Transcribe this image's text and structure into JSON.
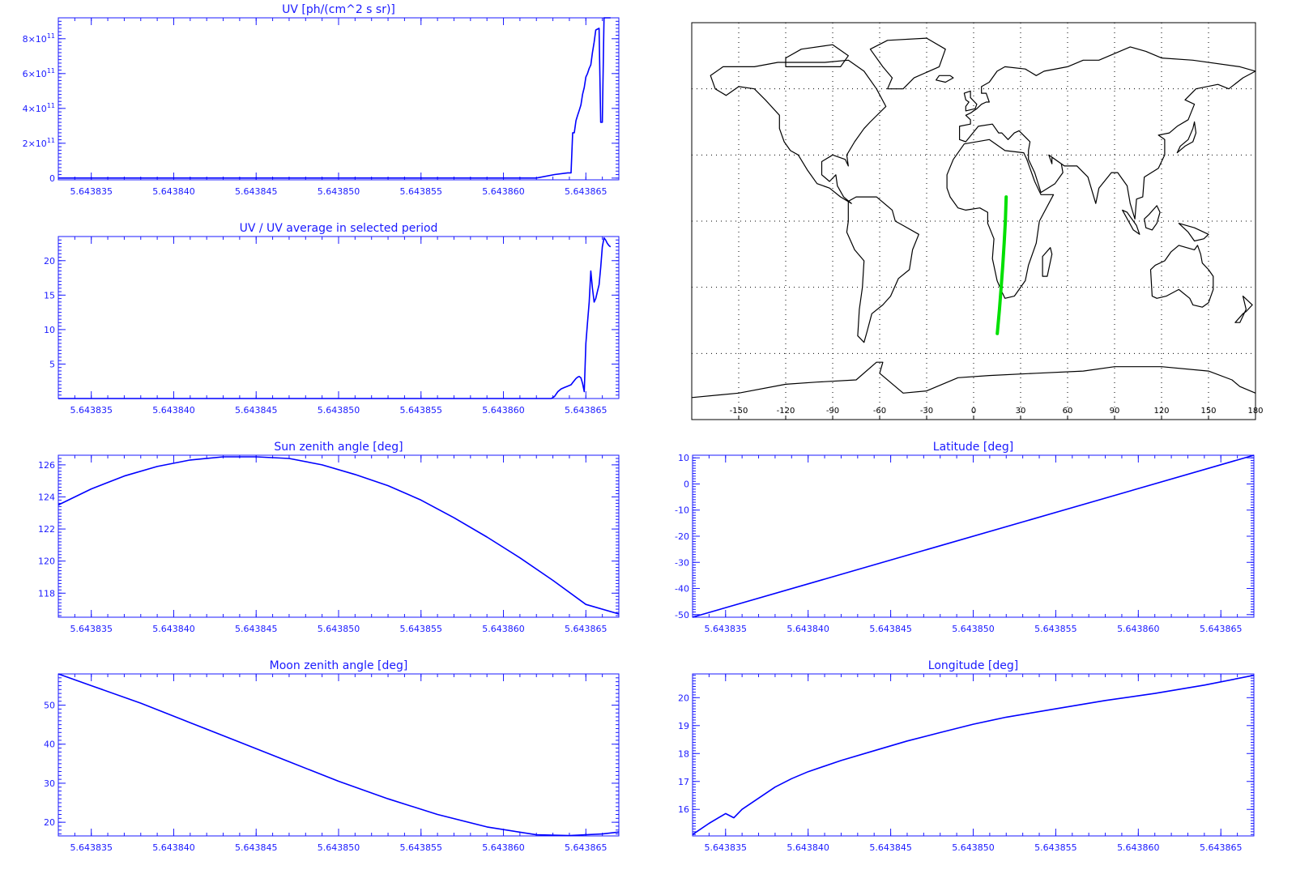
{
  "colors": {
    "axis": "#1a1aff",
    "line": "#0000ff",
    "track": "#00e000",
    "map_ink": "#000000",
    "grid": "#000000"
  },
  "chart_data": [
    {
      "id": "uv",
      "type": "line",
      "title": "UV [ph/(cm^2 s sr)]",
      "xlim": [
        5.643833,
        5.643867
      ],
      "ylim": [
        -10000000000.0,
        920000000000.0
      ],
      "x_ticks": [
        "5.643835",
        "5.643840",
        "5.643845",
        "5.643850",
        "5.643855",
        "5.643860",
        "5.643865"
      ],
      "x_tick_values": [
        5.643835,
        5.64384,
        5.643845,
        5.64385,
        5.643855,
        5.64386,
        5.643865
      ],
      "y_ticks": [
        {
          "v": 0,
          "label": "0"
        },
        {
          "v": 200000000000.0,
          "mant": "2",
          "exp": "11"
        },
        {
          "v": 400000000000.0,
          "mant": "4",
          "exp": "11"
        },
        {
          "v": 600000000000.0,
          "mant": "6",
          "exp": "11"
        },
        {
          "v": 800000000000.0,
          "mant": "8",
          "exp": "11"
        }
      ],
      "series": [
        {
          "x": [
            5.643833,
            5.6438563,
            5.643862,
            5.6438631,
            5.6438639,
            5.6438641,
            5.6438642,
            5.6438643,
            5.6438644,
            5.6438645,
            5.6438646,
            5.6438647,
            5.6438648,
            5.6438649,
            5.643865,
            5.6438651,
            5.6438652,
            5.6438653,
            5.6438654,
            5.6438655,
            5.6438656,
            5.6438657,
            5.6438658,
            5.6438659,
            5.643866,
            5.6438661,
            5.6438662,
            5.6438663,
            5.6438664,
            5.6438665
          ],
          "y": [
            0,
            0,
            0,
            20000000000.0,
            30000000000.0,
            30000000000.0,
            260000000000.0,
            260000000000.0,
            330000000000.0,
            360000000000.0,
            390000000000.0,
            420000000000.0,
            480000000000.0,
            520000000000.0,
            580000000000.0,
            600000000000.0,
            630000000000.0,
            650000000000.0,
            720000000000.0,
            780000000000.0,
            850000000000.0,
            855000000000.0,
            860000000000.0,
            320000000000.0,
            320000000000.0,
            920000000000.0,
            920000000000.0,
            920000000000.0,
            920000000000.0,
            920000000000.0
          ]
        }
      ]
    },
    {
      "id": "uv-ratio",
      "type": "line",
      "title": "UV / UV average in selected period",
      "xlim": [
        5.643833,
        5.643867
      ],
      "ylim": [
        0,
        23.5
      ],
      "x_ticks": [
        "5.643835",
        "5.643840",
        "5.643845",
        "5.643850",
        "5.643855",
        "5.643860",
        "5.643865"
      ],
      "x_tick_values": [
        5.643835,
        5.64384,
        5.643845,
        5.64385,
        5.643855,
        5.64386,
        5.643865
      ],
      "y_ticks": [
        {
          "v": 5,
          "label": "5"
        },
        {
          "v": 10,
          "label": "10"
        },
        {
          "v": 15,
          "label": "15"
        },
        {
          "v": 20,
          "label": "20"
        }
      ],
      "series": [
        {
          "x": [
            5.643833,
            5.6438629,
            5.6438631,
            5.6438633,
            5.6438635,
            5.6438637,
            5.6438639,
            5.6438641,
            5.6438642,
            5.6438643,
            5.6438644,
            5.6438645,
            5.6438646,
            5.6438647,
            5.6438648,
            5.6438649,
            5.643865,
            5.6438651,
            5.6438652,
            5.6438653,
            5.6438654,
            5.6438655,
            5.6438656,
            5.6438657,
            5.6438658,
            5.6438659,
            5.643866,
            5.6438661,
            5.6438662,
            5.6438663,
            5.6438664,
            5.6438665
          ],
          "y": [
            0,
            0,
            0.3,
            1.0,
            1.4,
            1.6,
            1.8,
            2.0,
            2.3,
            2.6,
            2.9,
            3.1,
            3.2,
            3.0,
            2.2,
            1.0,
            8.0,
            11.0,
            14.0,
            18.5,
            16.0,
            14.0,
            14.5,
            15.5,
            16.5,
            19.0,
            22.0,
            23.3,
            23.0,
            22.5,
            22.2,
            22.0
          ]
        }
      ]
    },
    {
      "id": "sun-zenith",
      "type": "line",
      "title": "Sun zenith angle [deg]",
      "xlim": [
        5.643833,
        5.643867
      ],
      "ylim": [
        116.5,
        126.6
      ],
      "x_ticks": [
        "5.643835",
        "5.643840",
        "5.643845",
        "5.643850",
        "5.643855",
        "5.643860",
        "5.643865"
      ],
      "x_tick_values": [
        5.643835,
        5.64384,
        5.643845,
        5.64385,
        5.643855,
        5.64386,
        5.643865
      ],
      "y_ticks": [
        {
          "v": 118,
          "label": "118"
        },
        {
          "v": 120,
          "label": "120"
        },
        {
          "v": 122,
          "label": "122"
        },
        {
          "v": 124,
          "label": "124"
        },
        {
          "v": 126,
          "label": "126"
        }
      ],
      "series": [
        {
          "x": [
            5.643833,
            5.643835,
            5.643837,
            5.643839,
            5.643841,
            5.643843,
            5.643845,
            5.643847,
            5.643849,
            5.643851,
            5.643853,
            5.643855,
            5.643857,
            5.643859,
            5.643861,
            5.643863,
            5.643865,
            5.643867
          ],
          "y": [
            123.5,
            124.5,
            125.3,
            125.9,
            126.3,
            126.5,
            126.5,
            126.4,
            126.0,
            125.4,
            124.7,
            123.8,
            122.7,
            121.5,
            120.2,
            118.8,
            117.3,
            116.7
          ]
        }
      ]
    },
    {
      "id": "latitude",
      "type": "line",
      "title": "Latitude [deg]",
      "xlim": [
        5.643833,
        5.643867
      ],
      "ylim": [
        -51,
        11
      ],
      "x_ticks": [
        "5.643835",
        "5.643840",
        "5.643845",
        "5.643850",
        "5.643855",
        "5.643860",
        "5.643865"
      ],
      "x_tick_values": [
        5.643835,
        5.64384,
        5.643845,
        5.64385,
        5.643855,
        5.64386,
        5.643865
      ],
      "y_ticks": [
        {
          "v": -50,
          "label": "-50"
        },
        {
          "v": -40,
          "label": "-40"
        },
        {
          "v": -30,
          "label": "-30"
        },
        {
          "v": -20,
          "label": "-20"
        },
        {
          "v": -10,
          "label": "-10"
        },
        {
          "v": 0,
          "label": "0"
        },
        {
          "v": 10,
          "label": "10"
        }
      ],
      "series": [
        {
          "x": [
            5.643833,
            5.643867
          ],
          "y": [
            -51,
            11
          ]
        }
      ]
    },
    {
      "id": "moon-zenith",
      "type": "line",
      "title": "Moon zenith angle [deg]",
      "xlim": [
        5.643833,
        5.643867
      ],
      "ylim": [
        16.5,
        58
      ],
      "x_ticks": [
        "5.643835",
        "5.643840",
        "5.643845",
        "5.643850",
        "5.643855",
        "5.643860",
        "5.643865"
      ],
      "x_tick_values": [
        5.643835,
        5.64384,
        5.643845,
        5.64385,
        5.643855,
        5.64386,
        5.643865
      ],
      "y_ticks": [
        {
          "v": 20,
          "label": "20"
        },
        {
          "v": 30,
          "label": "30"
        },
        {
          "v": 40,
          "label": "40"
        },
        {
          "v": 50,
          "label": "50"
        }
      ],
      "series": [
        {
          "x": [
            5.643833,
            5.643835,
            5.643838,
            5.643841,
            5.643844,
            5.643847,
            5.64385,
            5.643853,
            5.643856,
            5.643859,
            5.643862,
            5.643864,
            5.643866,
            5.643867
          ],
          "y": [
            58,
            55,
            50.5,
            45.5,
            40.5,
            35.5,
            30.5,
            26,
            22,
            18.8,
            16.8,
            16.6,
            17.0,
            17.5
          ]
        }
      ]
    },
    {
      "id": "longitude",
      "type": "line",
      "title": "Longitude [deg]",
      "xlim": [
        5.643833,
        5.643867
      ],
      "ylim": [
        15.05,
        20.85
      ],
      "x_ticks": [
        "5.643835",
        "5.643840",
        "5.643845",
        "5.643850",
        "5.643855",
        "5.643860",
        "5.643865"
      ],
      "x_tick_values": [
        5.643835,
        5.64384,
        5.643845,
        5.64385,
        5.643855,
        5.64386,
        5.643865
      ],
      "y_ticks": [
        {
          "v": 16,
          "label": "16"
        },
        {
          "v": 17,
          "label": "17"
        },
        {
          "v": 18,
          "label": "18"
        },
        {
          "v": 19,
          "label": "19"
        },
        {
          "v": 20,
          "label": "20"
        }
      ],
      "series": [
        {
          "x": [
            5.643833,
            5.643834,
            5.643835,
            5.6438355,
            5.643836,
            5.643837,
            5.643838,
            5.643839,
            5.64384,
            5.643842,
            5.643844,
            5.643846,
            5.643848,
            5.64385,
            5.643852,
            5.643855,
            5.643858,
            5.643861,
            5.643864,
            5.643867
          ],
          "y": [
            15.1,
            15.5,
            15.85,
            15.7,
            16.0,
            16.4,
            16.8,
            17.1,
            17.35,
            17.75,
            18.1,
            18.45,
            18.75,
            19.05,
            19.3,
            19.6,
            19.9,
            20.15,
            20.45,
            20.8
          ]
        }
      ]
    },
    {
      "id": "track-map",
      "type": "map",
      "xlim": [
        -180,
        180
      ],
      "ylim": [
        -90,
        90
      ],
      "lon_ticks": [
        "-150",
        "-120",
        "-90",
        "-60",
        "-30",
        "0",
        "30",
        "60",
        "90",
        "120",
        "150",
        "180"
      ],
      "lon_tick_values": [
        -150,
        -120,
        -90,
        -60,
        -30,
        0,
        30,
        60,
        90,
        120,
        150,
        180
      ],
      "track": {
        "lon": [
          15.1,
          16.5,
          17.6,
          18.6,
          19.5,
          20.3,
          20.8
        ],
        "lat": [
          -51,
          -40,
          -30,
          -20,
          -10,
          0,
          11
        ]
      }
    }
  ]
}
